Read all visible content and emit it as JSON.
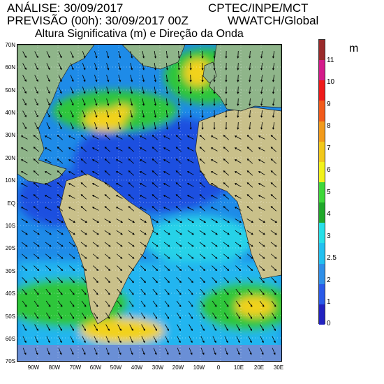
{
  "header": {
    "analysis": "ANÁLISE: 30/09/2017",
    "institution": "CPTEC/INPE/MCT",
    "forecast": "PREVISÃO (00h): 30/09/2017 00Z",
    "model": "WWATCH/Global",
    "title": "Altura Significativa (m) e Direção da Onda"
  },
  "map": {
    "lat_ticks": [
      "70N",
      "60N",
      "50N",
      "40N",
      "30N",
      "20N",
      "10N",
      "EQ",
      "10S",
      "20S",
      "30S",
      "40S",
      "50S",
      "60S",
      "70S"
    ],
    "lon_ticks": [
      "90W",
      "80W",
      "70W",
      "60W",
      "50W",
      "40W",
      "30W",
      "20W",
      "10W",
      "0",
      "10E",
      "20E",
      "30E"
    ],
    "colors": {
      "land": "#8fb58a",
      "land_high": "#c9c08a",
      "wave_1": "#1f4fe0",
      "wave_2": "#1e8be8",
      "wave_2_5": "#22b5f0",
      "wave_3": "#27d2e8",
      "wave_4": "#2ec63a",
      "wave_5": "#3fd83a",
      "wave_6": "#f2d21a",
      "wave_7": "#f2a21a"
    }
  },
  "colorbar": {
    "unit": "m",
    "labels": [
      "0",
      "1",
      "2",
      "2.5",
      "3",
      "4",
      "5",
      "6",
      "7",
      "8",
      "9",
      "10",
      "11"
    ],
    "colors": [
      "#2222c0",
      "#2a5ae8",
      "#2f8fe8",
      "#22c0f0",
      "#27e0e8",
      "#1fa82a",
      "#3ed83a",
      "#f2f21a",
      "#f2c81a",
      "#f29a1a",
      "#f25a1a",
      "#ee1a1a",
      "#d41a8a",
      "#9a2a2a"
    ]
  }
}
